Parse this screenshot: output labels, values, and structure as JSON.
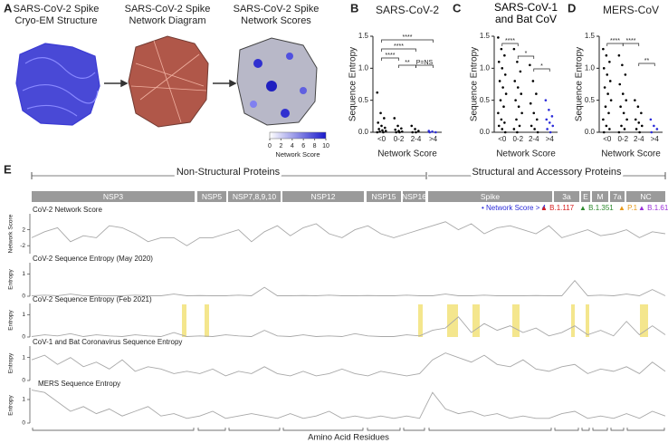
{
  "panel_a": {
    "letter": "A",
    "titles": [
      [
        "SARS-CoV-2 Spike",
        "Cryo-EM Structure"
      ],
      [
        "SARS-CoV-2 Spike",
        "Network Diagram"
      ],
      [
        "SARS-CoV-2 Spike",
        "Network Scores"
      ]
    ],
    "colorbar_lim": [
      0,
      10
    ],
    "colorbar_ticks": [
      0,
      2,
      4,
      6,
      8,
      10
    ],
    "colorbar_label": "Network Score"
  },
  "chart_data": [
    {
      "type": "strip",
      "letter": "B",
      "title": "SARS-CoV-2",
      "ylabel": "Sequence Entropy",
      "xlabel": "Network Score",
      "categories": [
        "<0",
        "0-2",
        "2-4",
        ">4"
      ],
      "colors": [
        "#000000",
        "#000000",
        "#000000",
        "#2b2bd9"
      ],
      "values": [
        [
          0.62,
          0.3,
          0.22,
          0.15,
          0.1,
          0.07,
          0.05,
          0.03,
          0.02,
          0.01,
          0,
          0
        ],
        [
          0.22,
          0.1,
          0.06,
          0.04,
          0.02,
          0.01,
          0,
          0
        ],
        [
          0.1,
          0.05,
          0.02,
          0,
          0
        ],
        [
          0.02,
          0.01,
          0,
          0
        ]
      ],
      "ylim": [
        0,
        1.5
      ],
      "yticks": [
        {
          "value": 0,
          "label": "0.0"
        },
        {
          "value": 0.5,
          "label": "0.5"
        },
        {
          "value": 1,
          "label": "1.0"
        },
        {
          "value": 1.5,
          "label": "1.5"
        }
      ],
      "annotations": [
        "****",
        "****",
        "****",
        "**",
        "P=NS"
      ]
    },
    {
      "type": "strip",
      "letter": "C",
      "title": "SARS-CoV-1 and Bat CoV",
      "ylabel": "Sequence Entropy",
      "xlabel": "Network Score",
      "categories": [
        "<0",
        "0-2",
        "2-4",
        ">4"
      ],
      "colors": [
        "#000000",
        "#000000",
        "#000000",
        "#2b2bd9"
      ],
      "values": [
        [
          1.48,
          1.3,
          1.2,
          1.1,
          1.0,
          0.9,
          0.8,
          0.7,
          0.6,
          0.5,
          0.4,
          0.3,
          0.2,
          0.15,
          0.1,
          0.05,
          0
        ],
        [
          1.3,
          1.1,
          0.95,
          0.8,
          0.7,
          0.6,
          0.5,
          0.4,
          0.3,
          0.2,
          0.1,
          0.05,
          0
        ],
        [
          1.05,
          0.8,
          0.6,
          0.45,
          0.3,
          0.2,
          0.1,
          0.05,
          0
        ],
        [
          0.5,
          0.35,
          0.25,
          0.2,
          0.15,
          0.1,
          0.05,
          0
        ]
      ],
      "ylim": [
        0,
        1.5
      ],
      "yticks": [
        {
          "value": 0,
          "label": "0.0"
        },
        {
          "value": 0.5,
          "label": "0.5"
        },
        {
          "value": 1,
          "label": "1.0"
        },
        {
          "value": 1.5,
          "label": "1.5"
        }
      ],
      "annotations": [
        "****",
        "*",
        "*"
      ]
    },
    {
      "type": "strip",
      "letter": "D",
      "title": "MERS-CoV",
      "ylabel": "Sequence Entropy",
      "xlabel": "Network Score",
      "categories": [
        "<0",
        "0-2",
        "2-4",
        ">4"
      ],
      "colors": [
        "#000000",
        "#000000",
        "#000000",
        "#2b2bd9"
      ],
      "values": [
        [
          1.3,
          1.2,
          1.1,
          1.0,
          0.9,
          0.8,
          0.7,
          0.6,
          0.5,
          0.4,
          0.3,
          0.2,
          0.1,
          0.05,
          0
        ],
        [
          1.2,
          1.05,
          0.9,
          0.75,
          0.6,
          0.5,
          0.4,
          0.3,
          0.2,
          0.1,
          0.05,
          0
        ],
        [
          0.5,
          0.4,
          0.3,
          0.2,
          0.15,
          0.1,
          0.05,
          0
        ],
        [
          0.2,
          0.1,
          0.05,
          0
        ]
      ],
      "ylim": [
        0,
        1.5
      ],
      "yticks": [
        {
          "value": 0,
          "label": "0.0"
        },
        {
          "value": 0.5,
          "label": "0.5"
        },
        {
          "value": 1,
          "label": "1.0"
        },
        {
          "value": 1.5,
          "label": "1.5"
        }
      ],
      "annotations": [
        "****",
        "****",
        "**"
      ]
    }
  ],
  "panel_e": {
    "letter": "E",
    "groups": [
      "Non-Structural Proteins",
      "Structural and Accessory Proteins"
    ],
    "proteins": [
      "NSP3",
      "NSP5",
      "NSP7,8,9,10",
      "NSP12",
      "NSP15",
      "NSP16",
      "Spike",
      "3a",
      "E",
      "M",
      "7a",
      "NC"
    ],
    "legend": [
      {
        "label": "• Network Score > 4",
        "color": "#2b2bd9"
      },
      {
        "label": "▲ B.1.117",
        "color": "#d62020"
      },
      {
        "label": "▲ B.1.351",
        "color": "#2e8b2e"
      },
      {
        "label": "▲ P.1",
        "color": "#e89a1a"
      },
      {
        "label": "▲ B.1.617",
        "color": "#9b30d9"
      }
    ],
    "xlabel": "Amino Acid Residues",
    "tracks": [
      {
        "title": "CoV-2 Network Score",
        "ylabel": "Network Score",
        "ylim": [
          -4,
          6
        ],
        "yticks": [
          2,
          -2
        ],
        "values": [
          0,
          1.5,
          2.5,
          -1,
          0.5,
          0,
          3,
          2.5,
          1,
          -1,
          0,
          0,
          -2,
          0,
          0,
          1,
          2,
          -1,
          1.5,
          3,
          0.5,
          2.5,
          3.5,
          1,
          0,
          2,
          3,
          1,
          0,
          1,
          2,
          3,
          4,
          2,
          3.5,
          1,
          2.5,
          3,
          2,
          1,
          3,
          0,
          1,
          2,
          0.5,
          1,
          2,
          0,
          1.5,
          1
        ]
      },
      {
        "title": "CoV-2 Sequence Entropy (May 2020)",
        "ylabel": "Entropy",
        "ylim": [
          0,
          1.5
        ],
        "yticks": [
          1,
          0
        ],
        "values": [
          0.02,
          0.05,
          0.02,
          0.1,
          0.02,
          0.03,
          0.02,
          0.02,
          0.05,
          0.02,
          0.02,
          0.1,
          0.02,
          0.03,
          0.02,
          0.02,
          0.05,
          0.02,
          0.4,
          0.02,
          0.02,
          0.03,
          0.02,
          0.05,
          0.02,
          0.02,
          0.03,
          0.02,
          0.02,
          0.05,
          0.02,
          0.02,
          0.1,
          0.02,
          0.02,
          0.05,
          0.02,
          0.02,
          0.02,
          0.03,
          0.02,
          0.02,
          0.7,
          0.02,
          0.05,
          0.02,
          0.1,
          0.02,
          0.3,
          0.02
        ]
      },
      {
        "title": "CoV-2 Sequence Entropy (Feb 2021)",
        "ylabel": "Entropy",
        "ylim": [
          0,
          1.5
        ],
        "yticks": [
          1,
          0
        ],
        "values": [
          0.02,
          0.1,
          0.05,
          0.15,
          0.02,
          0.1,
          0.05,
          0.02,
          0.1,
          0.05,
          0.02,
          0.2,
          0.02,
          0.05,
          0.02,
          0.1,
          0.05,
          0.02,
          0.3,
          0.05,
          0.02,
          0.1,
          0.02,
          0.05,
          0.02,
          0.15,
          0.05,
          0.02,
          0.02,
          0.1,
          0.05,
          0.3,
          0.4,
          0.9,
          0.2,
          0.6,
          0.3,
          0.5,
          0.2,
          0.4,
          0.05,
          0.2,
          0.5,
          0.1,
          0.3,
          0.05,
          0.7,
          0.1,
          0.5,
          0.1
        ]
      },
      {
        "title": "CoV-1 and Bat Coronavirus Sequence Entropy",
        "ylabel": "Entropy",
        "ylim": [
          0,
          1.5
        ],
        "yticks": [
          1,
          0
        ],
        "values": [
          0.9,
          1.1,
          0.7,
          1.0,
          0.6,
          0.8,
          0.5,
          0.9,
          0.4,
          0.6,
          0.5,
          0.3,
          0.4,
          0.3,
          0.5,
          0.2,
          0.4,
          0.3,
          0.6,
          0.3,
          0.2,
          0.4,
          0.2,
          0.3,
          0.5,
          0.3,
          0.2,
          0.4,
          0.3,
          0.2,
          0.3,
          0.9,
          1.2,
          1.0,
          0.8,
          1.1,
          0.7,
          0.6,
          0.9,
          0.5,
          0.4,
          0.6,
          0.7,
          0.3,
          0.5,
          0.4,
          0.6,
          0.3,
          0.8,
          0.4
        ]
      },
      {
        "title": "MERS Sequence Entropy",
        "ylabel": "Entropy",
        "ylim": [
          0,
          1.5
        ],
        "yticks": [
          1,
          0
        ],
        "values": [
          1.4,
          1.3,
          0.9,
          0.5,
          0.7,
          0.4,
          0.6,
          0.3,
          0.5,
          0.7,
          0.3,
          0.4,
          0.2,
          0.3,
          0.5,
          0.2,
          0.3,
          0.4,
          0.3,
          0.2,
          0.4,
          0.2,
          0.3,
          0.5,
          0.2,
          0.3,
          0.2,
          0.3,
          0.2,
          0.3,
          0.2,
          1.3,
          0.6,
          0.4,
          0.5,
          0.3,
          0.4,
          0.2,
          0.3,
          0.2,
          0.2,
          0.4,
          0.5,
          0.2,
          0.3,
          0.2,
          0.4,
          0.2,
          0.5,
          0.3
        ]
      }
    ]
  }
}
